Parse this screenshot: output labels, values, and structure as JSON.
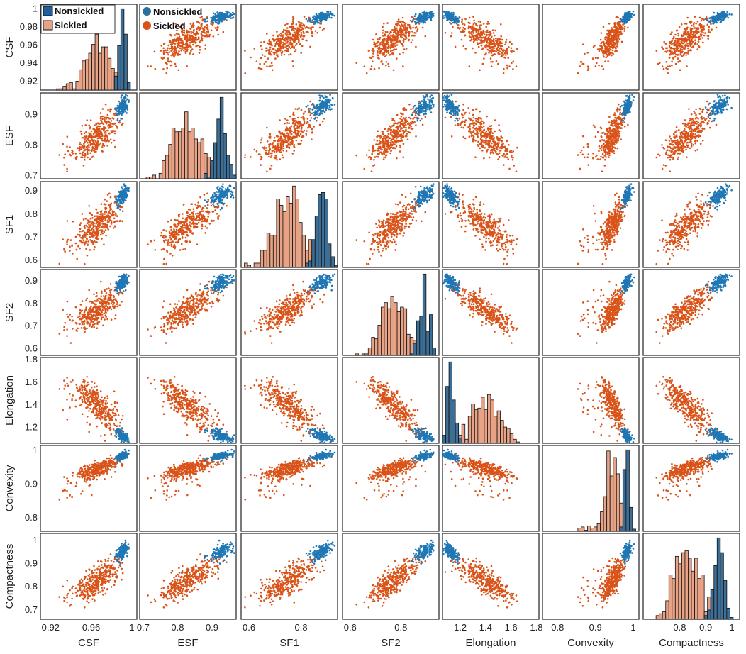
{
  "chart_data": {
    "type": "scatter-matrix",
    "variables": [
      "CSF",
      "ESF",
      "SF1",
      "SF2",
      "Elongation",
      "Convexity",
      "Compactness"
    ],
    "ranges": {
      "CSF": [
        0.91,
        1.005
      ],
      "ESF": [
        0.69,
        0.97
      ],
      "SF1": [
        0.57,
        0.94
      ],
      "SF2": [
        0.57,
        0.95
      ],
      "Elongation": [
        1.06,
        1.82
      ],
      "Convexity": [
        0.76,
        1.015
      ],
      "Compactness": [
        0.66,
        1.03
      ]
    },
    "x_ticks": {
      "CSF": [
        0.92,
        0.96,
        1
      ],
      "ESF": [
        0.7,
        0.8,
        0.9
      ],
      "SF1": [
        0.6,
        0.8
      ],
      "SF2": [
        0.6,
        0.8
      ],
      "Elongation": [
        1.2,
        1.4,
        1.6,
        1.8
      ],
      "Convexity": [
        0.8,
        0.9,
        1
      ],
      "Compactness": [
        0.8,
        0.9,
        1
      ]
    },
    "x_tick_labels": {
      "CSF": [
        "0.92",
        "0.96",
        "1"
      ],
      "ESF": [
        "0.7",
        "0.8",
        "0.9"
      ],
      "SF1": [
        "0.6",
        "0.8"
      ],
      "SF2": [
        "0.6",
        "0.8"
      ],
      "Elongation": [
        "1.2",
        "1.4",
        "1.6",
        "1.8"
      ],
      "Convexity": [
        "0.8",
        "0.9",
        "1"
      ],
      "Compactness": [
        "0.8",
        "0.9",
        "1"
      ]
    },
    "y_ticks": {
      "CSF": [
        0.92,
        0.94,
        0.96,
        0.98,
        1
      ],
      "ESF": [
        0.7,
        0.8,
        0.9
      ],
      "SF1": [
        0.6,
        0.7,
        0.8,
        0.9
      ],
      "SF2": [
        0.6,
        0.7,
        0.8,
        0.9
      ],
      "Elongation": [
        1.2,
        1.4,
        1.6,
        1.8
      ],
      "Convexity": [
        0.8,
        0.9,
        1
      ],
      "Compactness": [
        0.7,
        0.8,
        0.9,
        1
      ]
    },
    "y_tick_labels": {
      "CSF": [
        "0.92",
        "0.94",
        "0.96",
        "0.98",
        "1"
      ],
      "ESF": [
        "0.7",
        "0.8",
        "0.9"
      ],
      "SF1": [
        "0.6",
        "0.7",
        "0.8",
        "0.9"
      ],
      "SF2": [
        "0.6",
        "0.7",
        "0.8",
        "0.9"
      ],
      "Elongation": [
        "1.2",
        "1.4",
        "1.6",
        "1.8"
      ],
      "Convexity": [
        "0.8",
        "0.9",
        "1"
      ],
      "Compactness": [
        "0.7",
        "0.8",
        "0.9",
        "1"
      ]
    },
    "groups": [
      {
        "name": "Nonsickled",
        "scatter_color": "#1f77b4",
        "hist_color": "#3c6e96",
        "means": {
          "CSF": 0.992,
          "ESF": 0.93,
          "SF1": 0.89,
          "SF2": 0.9,
          "Elongation": 1.11,
          "Convexity": 0.985,
          "Compactness": 0.96
        }
      },
      {
        "name": "Sickled",
        "scatter_color": "#d95319",
        "hist_color": "#e8a285",
        "means": {
          "CSF": 0.97,
          "ESF": 0.83,
          "SF1": 0.75,
          "SF2": 0.77,
          "Elongation": 1.38,
          "Convexity": 0.95,
          "Compactness": 0.82
        }
      }
    ],
    "histograms": {
      "CSF": {
        "nonsickled_mode": 0.998,
        "sickled_mode": 0.978
      },
      "ESF": {
        "nonsickled_mode": 0.93,
        "sickled_mode": 0.84
      },
      "SF1": {
        "nonsickled_mode": 0.89,
        "sickled_mode": 0.74
      },
      "SF2": {
        "nonsickled_mode": 0.89,
        "sickled_mode": 0.77
      },
      "Elongation": {
        "nonsickled_mode": 1.12,
        "sickled_mode": 1.33
      },
      "Convexity": {
        "nonsickled_mode": 0.99,
        "sickled_mode": 0.95
      },
      "Compactness": {
        "nonsickled_mode": 0.965,
        "sickled_mode": 0.83
      }
    },
    "legends": {
      "histogram": [
        "Nonsickled",
        "Sickled"
      ],
      "scatter": [
        "Nonsickled",
        "Sickled"
      ]
    }
  }
}
